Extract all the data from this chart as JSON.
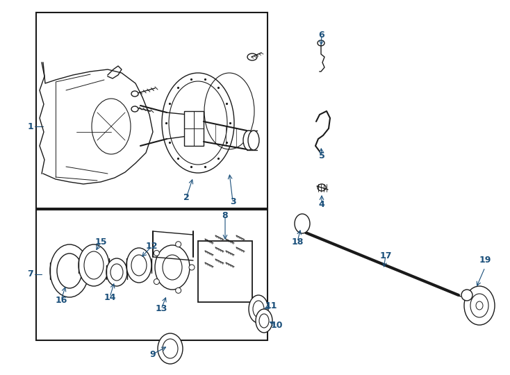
{
  "bg_color": "#ffffff",
  "line_color": "#1a1a1a",
  "label_color": "#1a4f7a",
  "fig_width": 7.34,
  "fig_height": 5.4,
  "dpi": 100
}
